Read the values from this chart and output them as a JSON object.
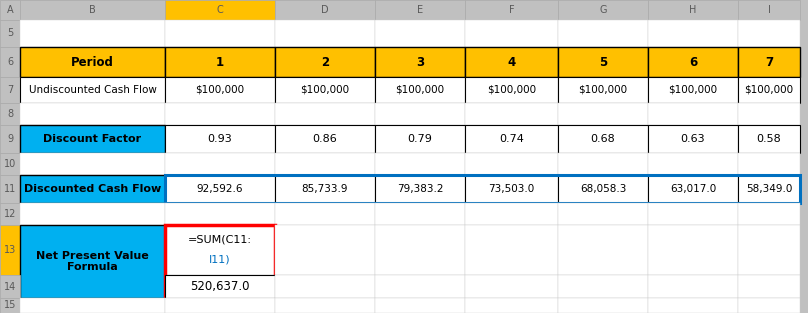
{
  "col_headers": [
    "A",
    "B",
    "C",
    "D",
    "E",
    "F",
    "G",
    "H",
    "I"
  ],
  "header_row": [
    "Period",
    "1",
    "2",
    "3",
    "4",
    "5",
    "6",
    "7"
  ],
  "undiscounted_row": [
    "Undiscounted Cash Flow",
    "$100,000",
    "$100,000",
    "$100,000",
    "$100,000",
    "$100,000",
    "$100,000",
    "$100,000"
  ],
  "discount_factor_row": [
    "Discount Factor",
    "0.93",
    "0.86",
    "0.79",
    "0.74",
    "0.68",
    "0.63",
    "0.58"
  ],
  "discounted_row": [
    "Discounted Cash Flow",
    "92,592.6",
    "85,733.9",
    "79,383.2",
    "73,503.0",
    "68,058.3",
    "63,017.0",
    "58,349.0"
  ],
  "npv_formula_label": "Net Present Value\nFormula",
  "npv_formula_val_line1": "=SUM(C11:",
  "npv_formula_val_line2": "I11)",
  "npv_value_label": "Net Present Value",
  "npv_value": "520,637.0",
  "color_gold": "#FFC000",
  "color_cyan": "#00B0F0",
  "color_white": "#FFFFFF",
  "color_gray_bg": "#C0C0C0",
  "color_black": "#000000",
  "color_red": "#FF0000",
  "color_blue": "#0070C0",
  "color_col_header_text": "#595959",
  "color_row_header_bg": "#D3D3D3",
  "fig_width": 8.08,
  "fig_height": 3.13,
  "dpi": 100
}
